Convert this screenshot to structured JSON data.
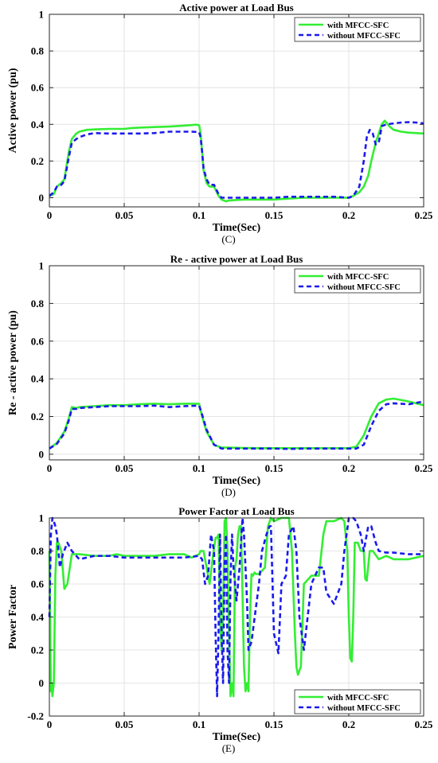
{
  "chart_data": [
    {
      "type": "line",
      "title": "Active power at Load Bus",
      "xlabel": "Time(Sec)",
      "ylabel": "Active power (pu)",
      "caption": "(C)",
      "xlim": [
        0,
        0.25
      ],
      "ylim": [
        -0.05,
        1
      ],
      "xticks": [
        0,
        0.05,
        0.1,
        0.15,
        0.2,
        0.25
      ],
      "xtick_labels": [
        "0",
        "0.05",
        "0.1",
        "0.15",
        "0.2",
        "0.25"
      ],
      "yticks": [
        0,
        0.2,
        0.4,
        0.6,
        0.8,
        1
      ],
      "ytick_labels": [
        "0",
        "0.2",
        "0.4",
        "0.6",
        "0.8",
        "1"
      ],
      "grid": true,
      "legend_position": "top-right",
      "series": [
        {
          "name": "with MFCC-SFC",
          "color": "#33ee33",
          "style": "solid",
          "x": [
            0,
            0.003,
            0.005,
            0.008,
            0.01,
            0.013,
            0.015,
            0.018,
            0.02,
            0.025,
            0.03,
            0.04,
            0.05,
            0.055,
            0.06,
            0.07,
            0.08,
            0.09,
            0.095,
            0.098,
            0.1,
            0.101,
            0.102,
            0.103,
            0.105,
            0.107,
            0.11,
            0.113,
            0.115,
            0.118,
            0.12,
            0.13,
            0.14,
            0.15,
            0.16,
            0.17,
            0.18,
            0.19,
            0.2,
            0.203,
            0.207,
            0.21,
            0.213,
            0.215,
            0.218,
            0.22,
            0.222,
            0.224,
            0.227,
            0.23,
            0.235,
            0.24,
            0.245,
            0.25
          ],
          "y": [
            0.01,
            0.02,
            0.06,
            0.08,
            0.1,
            0.25,
            0.32,
            0.35,
            0.36,
            0.37,
            0.372,
            0.375,
            0.375,
            0.38,
            0.382,
            0.385,
            0.388,
            0.393,
            0.396,
            0.398,
            0.395,
            0.35,
            0.25,
            0.15,
            0.08,
            0.06,
            0.06,
            0.01,
            -0.01,
            -0.02,
            -0.015,
            -0.01,
            -0.01,
            -0.01,
            -0.005,
            0.0,
            0.0,
            0.0,
            0.0,
            0.01,
            0.03,
            0.06,
            0.12,
            0.2,
            0.3,
            0.35,
            0.4,
            0.42,
            0.39,
            0.37,
            0.36,
            0.355,
            0.352,
            0.35
          ]
        },
        {
          "name": "without MFCC-SFC",
          "color": "#1a1aee",
          "style": "dashed",
          "x": [
            0,
            0.003,
            0.005,
            0.008,
            0.01,
            0.013,
            0.015,
            0.018,
            0.02,
            0.025,
            0.03,
            0.04,
            0.05,
            0.06,
            0.07,
            0.08,
            0.09,
            0.095,
            0.1,
            0.101,
            0.102,
            0.103,
            0.105,
            0.107,
            0.11,
            0.113,
            0.115,
            0.118,
            0.12,
            0.13,
            0.14,
            0.15,
            0.16,
            0.17,
            0.18,
            0.19,
            0.2,
            0.203,
            0.207,
            0.21,
            0.212,
            0.214,
            0.216,
            0.218,
            0.22,
            0.222,
            0.225,
            0.23,
            0.235,
            0.24,
            0.245,
            0.25
          ],
          "y": [
            0.01,
            0.03,
            0.06,
            0.07,
            0.09,
            0.22,
            0.3,
            0.32,
            0.33,
            0.345,
            0.352,
            0.35,
            0.35,
            0.35,
            0.352,
            0.36,
            0.36,
            0.36,
            0.358,
            0.33,
            0.25,
            0.16,
            0.1,
            0.07,
            0.07,
            0.02,
            0.0,
            0.0,
            0.0,
            0.0,
            0.0,
            0.0,
            0.005,
            0.005,
            0.005,
            0.005,
            0.0,
            0.01,
            0.06,
            0.2,
            0.33,
            0.37,
            0.35,
            0.29,
            0.3,
            0.39,
            0.4,
            0.405,
            0.41,
            0.412,
            0.41,
            0.405
          ]
        }
      ]
    },
    {
      "type": "line",
      "title": "Re - active power at Load Bus",
      "xlabel": "Time(Sec)",
      "ylabel": "Re - active power (pu)",
      "caption": "(D)",
      "xlim": [
        0,
        0.25
      ],
      "ylim": [
        -0.03,
        1
      ],
      "xticks": [
        0,
        0.05,
        0.1,
        0.15,
        0.2,
        0.25
      ],
      "xtick_labels": [
        "0",
        "0.05",
        "0.1",
        "0.15",
        "0.2",
        "0.25"
      ],
      "yticks": [
        0,
        0.2,
        0.4,
        0.6,
        0.8,
        1
      ],
      "ytick_labels": [
        "0",
        "0.2",
        "0.4",
        "0.6",
        "0.8",
        "1"
      ],
      "grid": true,
      "legend_position": "top-right",
      "series": [
        {
          "name": "with MFCC-SFC",
          "color": "#33ee33",
          "style": "solid",
          "x": [
            0,
            0.005,
            0.01,
            0.013,
            0.015,
            0.018,
            0.02,
            0.03,
            0.04,
            0.05,
            0.06,
            0.07,
            0.08,
            0.09,
            0.1,
            0.102,
            0.105,
            0.11,
            0.115,
            0.12,
            0.13,
            0.14,
            0.15,
            0.16,
            0.17,
            0.18,
            0.19,
            0.2,
            0.205,
            0.21,
            0.215,
            0.22,
            0.225,
            0.23,
            0.24,
            0.25
          ],
          "y": [
            0.03,
            0.06,
            0.12,
            0.19,
            0.25,
            0.245,
            0.25,
            0.255,
            0.26,
            0.26,
            0.265,
            0.268,
            0.265,
            0.268,
            0.268,
            0.2,
            0.12,
            0.05,
            0.035,
            0.035,
            0.033,
            0.032,
            0.032,
            0.032,
            0.032,
            0.032,
            0.032,
            0.032,
            0.04,
            0.1,
            0.2,
            0.27,
            0.29,
            0.295,
            0.28,
            0.26
          ]
        },
        {
          "name": "without MFCC-SFC",
          "color": "#1a1aee",
          "style": "dashed",
          "x": [
            0,
            0.005,
            0.01,
            0.013,
            0.015,
            0.018,
            0.02,
            0.03,
            0.04,
            0.05,
            0.06,
            0.07,
            0.08,
            0.09,
            0.1,
            0.102,
            0.105,
            0.11,
            0.115,
            0.12,
            0.13,
            0.14,
            0.15,
            0.16,
            0.17,
            0.18,
            0.19,
            0.2,
            0.205,
            0.21,
            0.215,
            0.22,
            0.225,
            0.23,
            0.24,
            0.25
          ],
          "y": [
            0.03,
            0.055,
            0.11,
            0.18,
            0.24,
            0.24,
            0.245,
            0.25,
            0.255,
            0.255,
            0.255,
            0.258,
            0.25,
            0.255,
            0.258,
            0.21,
            0.13,
            0.05,
            0.03,
            0.03,
            0.03,
            0.03,
            0.03,
            0.028,
            0.03,
            0.03,
            0.03,
            0.03,
            0.03,
            0.05,
            0.15,
            0.23,
            0.265,
            0.27,
            0.265,
            0.28
          ]
        }
      ]
    },
    {
      "type": "line",
      "title": "Power Factor at Load Bus",
      "xlabel": "Time(Sec)",
      "ylabel": "Power Factor",
      "caption": "(E)",
      "xlim": [
        0,
        0.25
      ],
      "ylim": [
        -0.2,
        1
      ],
      "xticks": [
        0,
        0.05,
        0.1,
        0.15,
        0.2,
        0.25
      ],
      "xtick_labels": [
        "0",
        "0.05",
        "0.1",
        "0.15",
        "0.2",
        "0.25"
      ],
      "yticks": [
        -0.2,
        0,
        0.2,
        0.4,
        0.6,
        0.8,
        1
      ],
      "ytick_labels": [
        "-0.2",
        "0",
        "0.2",
        "0.4",
        "0.6",
        "0.8",
        "1"
      ],
      "grid": true,
      "legend_position": "bottom-right",
      "series": [
        {
          "name": "with MFCC-SFC",
          "color": "#33ee33",
          "style": "solid",
          "x": [
            0,
            0.0005,
            0.001,
            0.0015,
            0.002,
            0.003,
            0.004,
            0.005,
            0.006,
            0.008,
            0.01,
            0.012,
            0.015,
            0.02,
            0.03,
            0.04,
            0.045,
            0.05,
            0.06,
            0.07,
            0.08,
            0.09,
            0.095,
            0.1,
            0.101,
            0.103,
            0.105,
            0.107,
            0.109,
            0.111,
            0.112,
            0.113,
            0.114,
            0.115,
            0.116,
            0.117,
            0.118,
            0.119,
            0.12,
            0.121,
            0.122,
            0.123,
            0.124,
            0.125,
            0.126,
            0.127,
            0.128,
            0.129,
            0.13,
            0.131,
            0.132,
            0.133,
            0.134,
            0.135,
            0.136,
            0.137,
            0.138,
            0.14,
            0.144,
            0.146,
            0.148,
            0.15,
            0.155,
            0.16,
            0.162,
            0.164,
            0.165,
            0.166,
            0.168,
            0.17,
            0.175,
            0.18,
            0.183,
            0.185,
            0.19,
            0.195,
            0.197,
            0.199,
            0.2,
            0.201,
            0.202,
            0.203,
            0.204,
            0.206,
            0.208,
            0.21,
            0.211,
            0.212,
            0.214,
            0.216,
            0.22,
            0.225,
            0.23,
            0.24,
            0.25
          ],
          "y": [
            0.8,
            0.4,
            -0.05,
            0.0,
            -0.08,
            0.0,
            0.65,
            0.85,
            0.85,
            0.8,
            0.57,
            0.6,
            0.78,
            0.78,
            0.77,
            0.77,
            0.78,
            0.77,
            0.77,
            0.77,
            0.78,
            0.78,
            0.76,
            0.78,
            0.8,
            0.8,
            0.7,
            0.6,
            0.75,
            0.88,
            0.88,
            0.9,
            0.4,
            0.2,
            0.4,
            0.98,
            1.0,
            0.8,
            0.3,
            -0.08,
            0.0,
            -0.08,
            0.7,
            0.75,
            0.9,
            0.95,
            0.95,
            0.55,
            0.1,
            -0.05,
            0.0,
            -0.05,
            0.4,
            0.66,
            0.65,
            0.67,
            0.66,
            0.66,
            0.7,
            0.95,
            1.0,
            0.98,
            1.0,
            1.0,
            0.8,
            0.3,
            0.1,
            0.05,
            0.1,
            0.6,
            0.65,
            0.65,
            0.9,
            0.98,
            0.98,
            1.0,
            0.98,
            0.8,
            0.4,
            0.15,
            0.13,
            0.4,
            0.85,
            0.85,
            0.8,
            0.8,
            0.63,
            0.62,
            0.8,
            0.8,
            0.75,
            0.77,
            0.75,
            0.75,
            0.77
          ]
        },
        {
          "name": "without MFCC-SFC",
          "color": "#1a1aee",
          "style": "dashed",
          "x": [
            0,
            0.001,
            0.002,
            0.003,
            0.004,
            0.005,
            0.007,
            0.009,
            0.012,
            0.015,
            0.02,
            0.03,
            0.04,
            0.05,
            0.06,
            0.07,
            0.08,
            0.09,
            0.1,
            0.102,
            0.104,
            0.106,
            0.108,
            0.11,
            0.111,
            0.112,
            0.113,
            0.114,
            0.115,
            0.116,
            0.117,
            0.118,
            0.119,
            0.12,
            0.121,
            0.122,
            0.123,
            0.125,
            0.127,
            0.129,
            0.13,
            0.132,
            0.133,
            0.135,
            0.14,
            0.142,
            0.145,
            0.147,
            0.148,
            0.15,
            0.153,
            0.155,
            0.158,
            0.16,
            0.163,
            0.165,
            0.167,
            0.17,
            0.175,
            0.18,
            0.183,
            0.185,
            0.19,
            0.195,
            0.197,
            0.2,
            0.203,
            0.205,
            0.208,
            0.21,
            0.213,
            0.215,
            0.218,
            0.22,
            0.225,
            0.23,
            0.24,
            0.25
          ],
          "y": [
            0.4,
            0.9,
            1.0,
            0.98,
            0.95,
            0.9,
            0.7,
            0.78,
            0.85,
            0.8,
            0.75,
            0.77,
            0.77,
            0.76,
            0.76,
            0.76,
            0.76,
            0.76,
            0.77,
            0.75,
            0.6,
            0.65,
            0.9,
            0.8,
            0.3,
            -0.08,
            0.3,
            0.9,
            0.3,
            0.0,
            0.7,
            0.9,
            0.2,
            0.0,
            0.65,
            0.9,
            0.7,
            0.5,
            0.7,
            1.0,
            0.9,
            0.5,
            0.2,
            0.25,
            0.6,
            0.8,
            0.9,
            0.95,
            0.95,
            0.3,
            0.18,
            0.6,
            0.65,
            0.9,
            0.95,
            0.8,
            0.4,
            0.2,
            0.6,
            0.7,
            0.7,
            0.55,
            0.48,
            0.6,
            0.8,
            1.0,
            1.0,
            0.98,
            0.9,
            0.8,
            0.95,
            0.95,
            0.85,
            0.8,
            0.79,
            0.79,
            0.78,
            0.78
          ]
        }
      ]
    }
  ]
}
